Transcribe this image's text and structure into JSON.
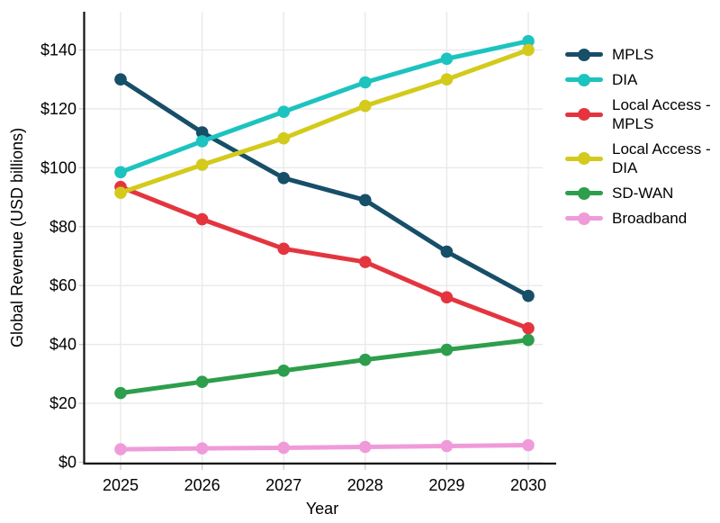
{
  "chart_data": {
    "type": "line",
    "title": "",
    "xlabel": "Year",
    "ylabel": "Global Revenue (USD billions)",
    "x": [
      2025,
      2026,
      2027,
      2028,
      2029,
      2030
    ],
    "series": [
      {
        "name": "MPLS",
        "color": "#174e68",
        "values": [
          130,
          112,
          96.5,
          89,
          71.5,
          56.5
        ]
      },
      {
        "name": "DIA",
        "color": "#1cc3bf",
        "values": [
          98.5,
          109,
          119,
          129,
          137,
          143
        ]
      },
      {
        "name": "Local Access - MPLS",
        "color": "#e4353f",
        "values": [
          93.5,
          82.5,
          72.5,
          68,
          56,
          45.5
        ]
      },
      {
        "name": "Local Access - DIA",
        "color": "#d3ca1b",
        "values": [
          91.5,
          101,
          110,
          121,
          130,
          140
        ]
      },
      {
        "name": "SD-WAN",
        "color": "#2d9e4b",
        "values": [
          23.5,
          27.3,
          31.1,
          34.8,
          38.2,
          41.5
        ]
      },
      {
        "name": "Broadband",
        "color": "#f09bd9",
        "values": [
          4.4,
          4.7,
          4.9,
          5.2,
          5.5,
          5.8
        ]
      }
    ],
    "y_ticks": [
      0,
      20,
      40,
      60,
      80,
      100,
      120,
      140
    ],
    "y_tick_prefix": "$",
    "ylim": [
      0,
      150
    ],
    "grid": true,
    "legend_position": "right"
  },
  "colors": {
    "background": "#ffffff",
    "gridline": "#e8e8e8",
    "tick_mark": "#cccccc",
    "axis_line": "#111111",
    "text": "#000000"
  }
}
